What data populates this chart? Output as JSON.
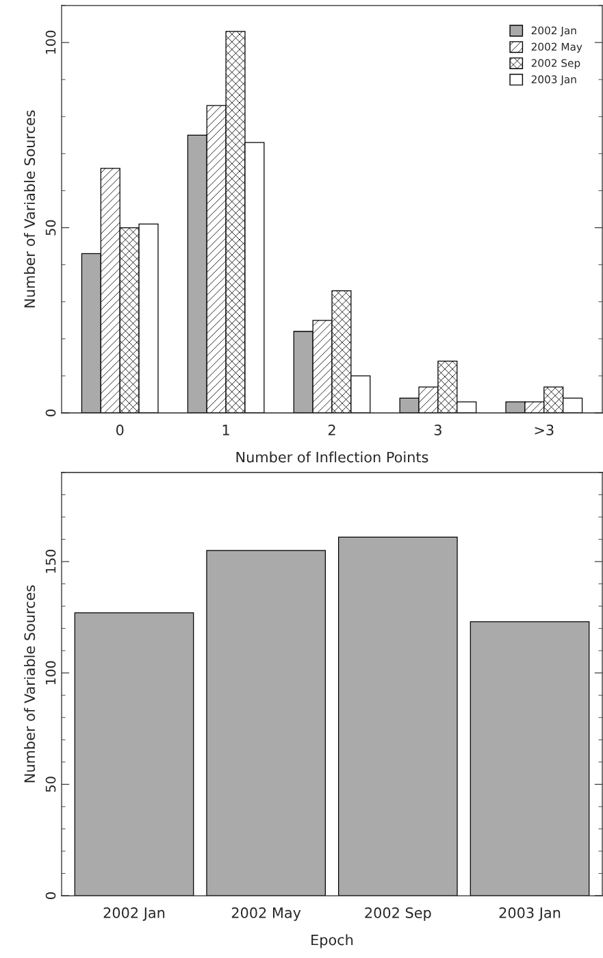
{
  "chart_data": [
    {
      "type": "bar",
      "xlabel": "Number of Inflection Points",
      "ylabel": "Number of Variable Sources",
      "categories": [
        "0",
        "1",
        "2",
        "3",
        ">3"
      ],
      "ylim": [
        0,
        110
      ],
      "yticks": [
        0,
        50,
        100
      ],
      "legend": "top right",
      "grid": false,
      "series": [
        {
          "name": "2002 Jan",
          "color": "#aaaaaa",
          "values": [
            43,
            75,
            22,
            4,
            3
          ]
        },
        {
          "name": "2002 May",
          "values": [
            66,
            83,
            25,
            7,
            3
          ]
        },
        {
          "name": "2002 Sep",
          "values": [
            50,
            103,
            33,
            14,
            7
          ]
        },
        {
          "name": "2003 Jan",
          "color": "#ffffff",
          "values": [
            51,
            73,
            10,
            3,
            4
          ]
        }
      ]
    },
    {
      "type": "bar",
      "xlabel": "Epoch",
      "ylabel": "Number of Variable Sources",
      "categories": [
        "2002 Jan",
        "2002 May",
        "2002 Sep",
        "2003 Jan"
      ],
      "ylim": [
        0,
        190
      ],
      "yticks": [
        0,
        50,
        100,
        150
      ],
      "grid": false,
      "color": "#aaaaaa",
      "values": [
        127,
        155,
        161,
        123
      ]
    }
  ]
}
